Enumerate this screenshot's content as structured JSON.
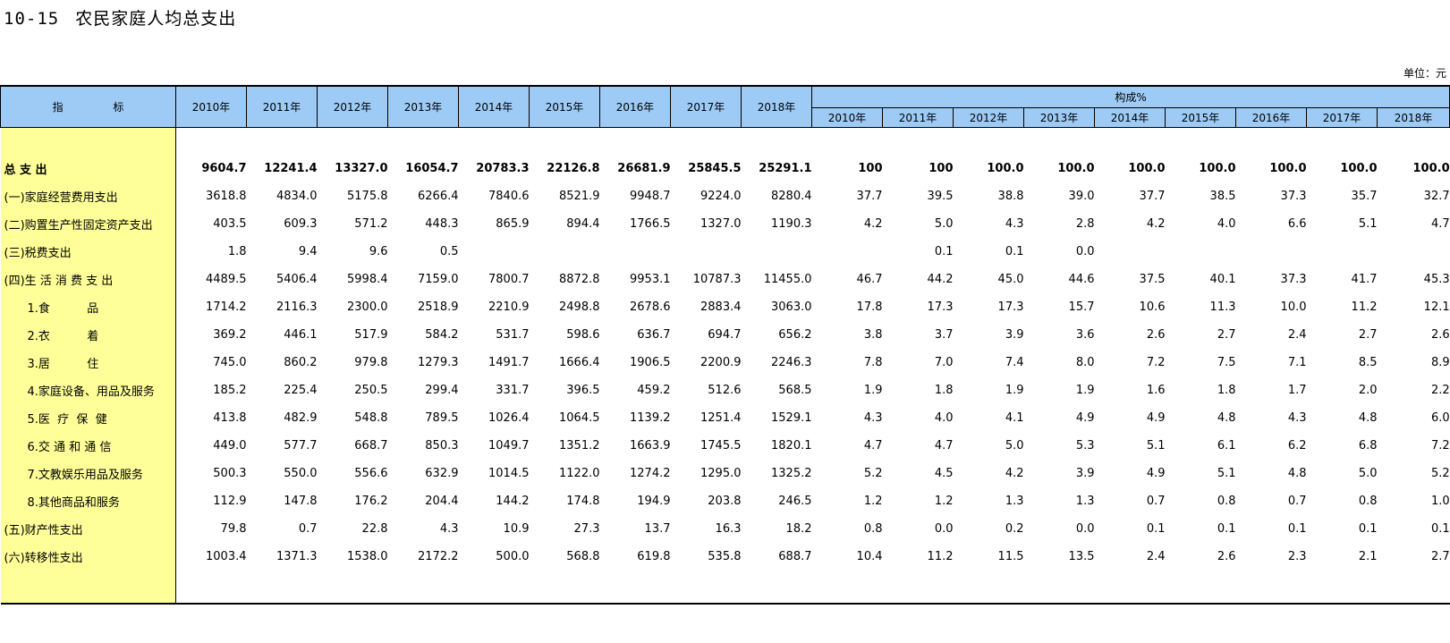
{
  "title": {
    "number": "10-15",
    "text": "农民家庭人均总支出"
  },
  "unit": "单位：元",
  "header": {
    "indicator": "指  标",
    "years": [
      "2010年",
      "2011年",
      "2012年",
      "2013年",
      "2014年",
      "2015年",
      "2016年",
      "2017年",
      "2018年"
    ],
    "composition": "构成%",
    "composition_years": [
      "2010年",
      "2011年",
      "2012年",
      "2013年",
      "2014年",
      "2015年",
      "2016年",
      "2017年",
      "2018年"
    ]
  },
  "rows": [
    {
      "label": "总 支 出",
      "bold": true,
      "sub": false,
      "values": [
        "9604.7",
        "12241.4",
        "13327.0",
        "16054.7",
        "20783.3",
        "22126.8",
        "26681.9",
        "25845.5",
        "25291.1"
      ],
      "pct": [
        "100",
        "100",
        "100.0",
        "100.0",
        "100.0",
        "100.0",
        "100.0",
        "100.0",
        "100.0"
      ]
    },
    {
      "label": "(一)家庭经营费用支出",
      "bold": false,
      "sub": false,
      "values": [
        "3618.8",
        "4834.0",
        "5175.8",
        "6266.4",
        "7840.6",
        "8521.9",
        "9948.7",
        "9224.0",
        "8280.4"
      ],
      "pct": [
        "37.7",
        "39.5",
        "38.8",
        "39.0",
        "37.7",
        "38.5",
        "37.3",
        "35.7",
        "32.7"
      ]
    },
    {
      "label": "(二)购置生产性固定资产支出",
      "bold": false,
      "sub": false,
      "values": [
        "403.5",
        "609.3",
        "571.2",
        "448.3",
        "865.9",
        "894.4",
        "1766.5",
        "1327.0",
        "1190.3"
      ],
      "pct": [
        "4.2",
        "5.0",
        "4.3",
        "2.8",
        "4.2",
        "4.0",
        "6.6",
        "5.1",
        "4.7"
      ]
    },
    {
      "label": "(三)税费支出",
      "bold": false,
      "sub": false,
      "values": [
        "1.8",
        "9.4",
        "9.6",
        "0.5",
        "",
        "",
        "",
        "",
        ""
      ],
      "pct": [
        "",
        "0.1",
        "0.1",
        "0.0",
        "",
        "",
        "",
        "",
        ""
      ]
    },
    {
      "label": "(四)生 活 消 费 支 出",
      "bold": false,
      "sub": false,
      "values": [
        "4489.5",
        "5406.4",
        "5998.4",
        "7159.0",
        "7800.7",
        "8872.8",
        "9953.1",
        "10787.3",
        "11455.0"
      ],
      "pct": [
        "46.7",
        "44.2",
        "45.0",
        "44.6",
        "37.5",
        "40.1",
        "37.3",
        "41.7",
        "45.3"
      ]
    },
    {
      "label": "1.食          品",
      "bold": false,
      "sub": true,
      "values": [
        "1714.2",
        "2116.3",
        "2300.0",
        "2518.9",
        "2210.9",
        "2498.8",
        "2678.6",
        "2883.4",
        "3063.0"
      ],
      "pct": [
        "17.8",
        "17.3",
        "17.3",
        "15.7",
        "10.6",
        "11.3",
        "10.0",
        "11.2",
        "12.1"
      ]
    },
    {
      "label": "2.衣          着",
      "bold": false,
      "sub": true,
      "values": [
        "369.2",
        "446.1",
        "517.9",
        "584.2",
        "531.7",
        "598.6",
        "636.7",
        "694.7",
        "656.2"
      ],
      "pct": [
        "3.8",
        "3.7",
        "3.9",
        "3.6",
        "2.6",
        "2.7",
        "2.4",
        "2.7",
        "2.6"
      ]
    },
    {
      "label": "3.居          住",
      "bold": false,
      "sub": true,
      "values": [
        "745.0",
        "860.2",
        "979.8",
        "1279.3",
        "1491.7",
        "1666.4",
        "1906.5",
        "2200.9",
        "2246.3"
      ],
      "pct": [
        "7.8",
        "7.0",
        "7.4",
        "8.0",
        "7.2",
        "7.5",
        "7.1",
        "8.5",
        "8.9"
      ]
    },
    {
      "label": "4.家庭设备、用品及服务",
      "bold": false,
      "sub": true,
      "values": [
        "185.2",
        "225.4",
        "250.5",
        "299.4",
        "331.7",
        "396.5",
        "459.2",
        "512.6",
        "568.5"
      ],
      "pct": [
        "1.9",
        "1.8",
        "1.9",
        "1.9",
        "1.6",
        "1.8",
        "1.7",
        "2.0",
        "2.2"
      ]
    },
    {
      "label": "5.医  疗  保  健",
      "bold": false,
      "sub": true,
      "values": [
        "413.8",
        "482.9",
        "548.8",
        "789.5",
        "1026.4",
        "1064.5",
        "1139.2",
        "1251.4",
        "1529.1"
      ],
      "pct": [
        "4.3",
        "4.0",
        "4.1",
        "4.9",
        "4.9",
        "4.8",
        "4.3",
        "4.8",
        "6.0"
      ]
    },
    {
      "label": "6.交 通 和 通 信",
      "bold": false,
      "sub": true,
      "values": [
        "449.0",
        "577.7",
        "668.7",
        "850.3",
        "1049.7",
        "1351.2",
        "1663.9",
        "1745.5",
        "1820.1"
      ],
      "pct": [
        "4.7",
        "4.7",
        "5.0",
        "5.3",
        "5.1",
        "6.1",
        "6.2",
        "6.8",
        "7.2"
      ]
    },
    {
      "label": "7.文教娱乐用品及服务",
      "bold": false,
      "sub": true,
      "values": [
        "500.3",
        "550.0",
        "556.6",
        "632.9",
        "1014.5",
        "1122.0",
        "1274.2",
        "1295.0",
        "1325.2"
      ],
      "pct": [
        "5.2",
        "4.5",
        "4.2",
        "3.9",
        "4.9",
        "5.1",
        "4.8",
        "5.0",
        "5.2"
      ]
    },
    {
      "label": "8.其他商品和服务",
      "bold": false,
      "sub": true,
      "values": [
        "112.9",
        "147.8",
        "176.2",
        "204.4",
        "144.2",
        "174.8",
        "194.9",
        "203.8",
        "246.5"
      ],
      "pct": [
        "1.2",
        "1.2",
        "1.3",
        "1.3",
        "0.7",
        "0.8",
        "0.7",
        "0.8",
        "1.0"
      ]
    },
    {
      "label": "(五)财产性支出",
      "bold": false,
      "sub": false,
      "values": [
        "79.8",
        "0.7",
        "22.8",
        "4.3",
        "10.9",
        "27.3",
        "13.7",
        "16.3",
        "18.2"
      ],
      "pct": [
        "0.8",
        "0.0",
        "0.2",
        "0.0",
        "0.1",
        "0.1",
        "0.1",
        "0.1",
        "0.1"
      ]
    },
    {
      "label": "(六)转移性支出",
      "bold": false,
      "sub": false,
      "values": [
        "1003.4",
        "1371.3",
        "1538.0",
        "2172.2",
        "500.0",
        "568.8",
        "619.8",
        "535.8",
        "688.7"
      ],
      "pct": [
        "10.4",
        "11.2",
        "11.5",
        "13.5",
        "2.4",
        "2.6",
        "2.3",
        "2.1",
        "2.7"
      ]
    }
  ],
  "colors": {
    "header_bg": "#9dcbf6",
    "label_bg": "#ffff99"
  }
}
